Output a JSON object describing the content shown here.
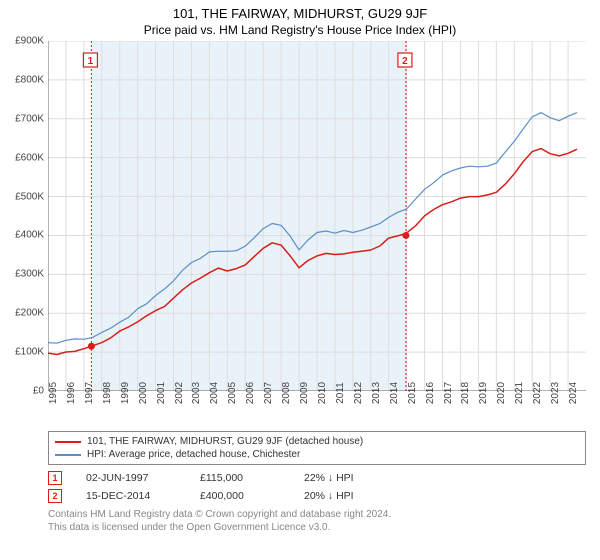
{
  "title": "101, THE FAIRWAY, MIDHURST, GU29 9JF",
  "subtitle": "Price paid vs. HM Land Registry's House Price Index (HPI)",
  "chart": {
    "type": "line",
    "background_color": "#ffffff",
    "grid_color": "#dddddd",
    "axis_color": "#666666",
    "band_color": "#d6e6f3",
    "band_opacity": 0.5,
    "x_min": 1995,
    "x_max": 2025,
    "y_min": 0,
    "y_max": 900000,
    "ytick_step": 100000,
    "ytick_prefix": "£",
    "ytick_suffix": "K",
    "xticks": [
      1995,
      1996,
      1997,
      1998,
      1999,
      2000,
      2001,
      2002,
      2003,
      2004,
      2005,
      2006,
      2007,
      2008,
      2009,
      2010,
      2011,
      2012,
      2013,
      2014,
      2015,
      2016,
      2017,
      2018,
      2019,
      2020,
      2021,
      2022,
      2023,
      2024
    ],
    "series": [
      {
        "name": "property",
        "label": "101, THE FAIRWAY, MIDHURST, GU29 9JF (detached house)",
        "color": "#d91e18",
        "width": 1.5,
        "data": [
          [
            1995.0,
            95000
          ],
          [
            1995.5,
            96000
          ],
          [
            1996.0,
            98000
          ],
          [
            1996.5,
            102000
          ],
          [
            1997.0,
            108000
          ],
          [
            1997.42,
            115000
          ],
          [
            1998.0,
            125000
          ],
          [
            1998.5,
            135000
          ],
          [
            1999.0,
            148000
          ],
          [
            1999.5,
            160000
          ],
          [
            2000.0,
            175000
          ],
          [
            2000.5,
            190000
          ],
          [
            2001.0,
            200000
          ],
          [
            2001.5,
            215000
          ],
          [
            2002.0,
            235000
          ],
          [
            2002.5,
            260000
          ],
          [
            2003.0,
            280000
          ],
          [
            2003.5,
            290000
          ],
          [
            2004.0,
            305000
          ],
          [
            2004.5,
            315000
          ],
          [
            2005.0,
            310000
          ],
          [
            2005.5,
            315000
          ],
          [
            2006.0,
            325000
          ],
          [
            2006.5,
            340000
          ],
          [
            2007.0,
            360000
          ],
          [
            2007.5,
            375000
          ],
          [
            2008.0,
            370000
          ],
          [
            2008.5,
            340000
          ],
          [
            2009.0,
            310000
          ],
          [
            2009.5,
            330000
          ],
          [
            2010.0,
            350000
          ],
          [
            2010.5,
            355000
          ],
          [
            2011.0,
            350000
          ],
          [
            2011.5,
            352000
          ],
          [
            2012.0,
            355000
          ],
          [
            2012.5,
            360000
          ],
          [
            2013.0,
            365000
          ],
          [
            2013.5,
            375000
          ],
          [
            2014.0,
            388000
          ],
          [
            2014.5,
            395000
          ],
          [
            2014.96,
            400000
          ],
          [
            2015.5,
            422000
          ],
          [
            2016.0,
            445000
          ],
          [
            2016.5,
            460000
          ],
          [
            2017.0,
            475000
          ],
          [
            2017.5,
            488000
          ],
          [
            2018.0,
            495000
          ],
          [
            2018.5,
            500000
          ],
          [
            2019.0,
            498000
          ],
          [
            2019.5,
            502000
          ],
          [
            2020.0,
            510000
          ],
          [
            2020.5,
            530000
          ],
          [
            2021.0,
            555000
          ],
          [
            2021.5,
            585000
          ],
          [
            2022.0,
            610000
          ],
          [
            2022.5,
            620000
          ],
          [
            2023.0,
            605000
          ],
          [
            2023.5,
            598000
          ],
          [
            2024.0,
            605000
          ],
          [
            2024.5,
            615000
          ]
        ]
      },
      {
        "name": "hpi",
        "label": "HPI: Average price, detached house, Chichester",
        "color": "#5b8fc7",
        "width": 1.2,
        "data": [
          [
            1995.0,
            118000
          ],
          [
            1995.5,
            120000
          ],
          [
            1996.0,
            123000
          ],
          [
            1996.5,
            127000
          ],
          [
            1997.0,
            133000
          ],
          [
            1997.5,
            140000
          ],
          [
            1998.0,
            150000
          ],
          [
            1998.5,
            162000
          ],
          [
            1999.0,
            178000
          ],
          [
            1999.5,
            192000
          ],
          [
            2000.0,
            210000
          ],
          [
            2000.5,
            225000
          ],
          [
            2001.0,
            238000
          ],
          [
            2001.5,
            255000
          ],
          [
            2002.0,
            278000
          ],
          [
            2002.5,
            305000
          ],
          [
            2003.0,
            325000
          ],
          [
            2003.5,
            338000
          ],
          [
            2004.0,
            352000
          ],
          [
            2004.5,
            362000
          ],
          [
            2005.0,
            358000
          ],
          [
            2005.5,
            362000
          ],
          [
            2006.0,
            375000
          ],
          [
            2006.5,
            392000
          ],
          [
            2007.0,
            415000
          ],
          [
            2007.5,
            432000
          ],
          [
            2008.0,
            425000
          ],
          [
            2008.5,
            392000
          ],
          [
            2009.0,
            360000
          ],
          [
            2009.5,
            382000
          ],
          [
            2010.0,
            402000
          ],
          [
            2010.5,
            408000
          ],
          [
            2011.0,
            402000
          ],
          [
            2011.5,
            405000
          ],
          [
            2012.0,
            408000
          ],
          [
            2012.5,
            415000
          ],
          [
            2013.0,
            420000
          ],
          [
            2013.5,
            432000
          ],
          [
            2014.0,
            448000
          ],
          [
            2014.5,
            458000
          ],
          [
            2015.0,
            468000
          ],
          [
            2015.5,
            490000
          ],
          [
            2016.0,
            515000
          ],
          [
            2016.5,
            532000
          ],
          [
            2017.0,
            548000
          ],
          [
            2017.5,
            562000
          ],
          [
            2018.0,
            570000
          ],
          [
            2018.5,
            575000
          ],
          [
            2019.0,
            572000
          ],
          [
            2019.5,
            578000
          ],
          [
            2020.0,
            588000
          ],
          [
            2020.5,
            612000
          ],
          [
            2021.0,
            640000
          ],
          [
            2021.5,
            675000
          ],
          [
            2022.0,
            705000
          ],
          [
            2022.5,
            718000
          ],
          [
            2023.0,
            700000
          ],
          [
            2023.5,
            690000
          ],
          [
            2024.0,
            700000
          ],
          [
            2024.5,
            710000
          ]
        ]
      }
    ],
    "sale_points": [
      {
        "x": 1997.42,
        "y": 115000,
        "color": "#d91e18"
      },
      {
        "x": 2014.96,
        "y": 400000,
        "color": "#d91e18"
      }
    ],
    "sale_markers": [
      {
        "num": "1",
        "x": 1997.42,
        "color": "#d91e18"
      },
      {
        "num": "2",
        "x": 2014.96,
        "color": "#d91e18"
      }
    ]
  },
  "sales": [
    {
      "num": "1",
      "color": "#d91e18",
      "date": "02-JUN-1997",
      "price": "£115,000",
      "diff": "22% ↓ HPI"
    },
    {
      "num": "2",
      "color": "#d91e18",
      "date": "15-DEC-2014",
      "price": "£400,000",
      "diff": "20% ↓ HPI"
    }
  ],
  "footnote1": "Contains HM Land Registry data © Crown copyright and database right 2024.",
  "footnote2": "This data is licensed under the Open Government Licence v3.0."
}
